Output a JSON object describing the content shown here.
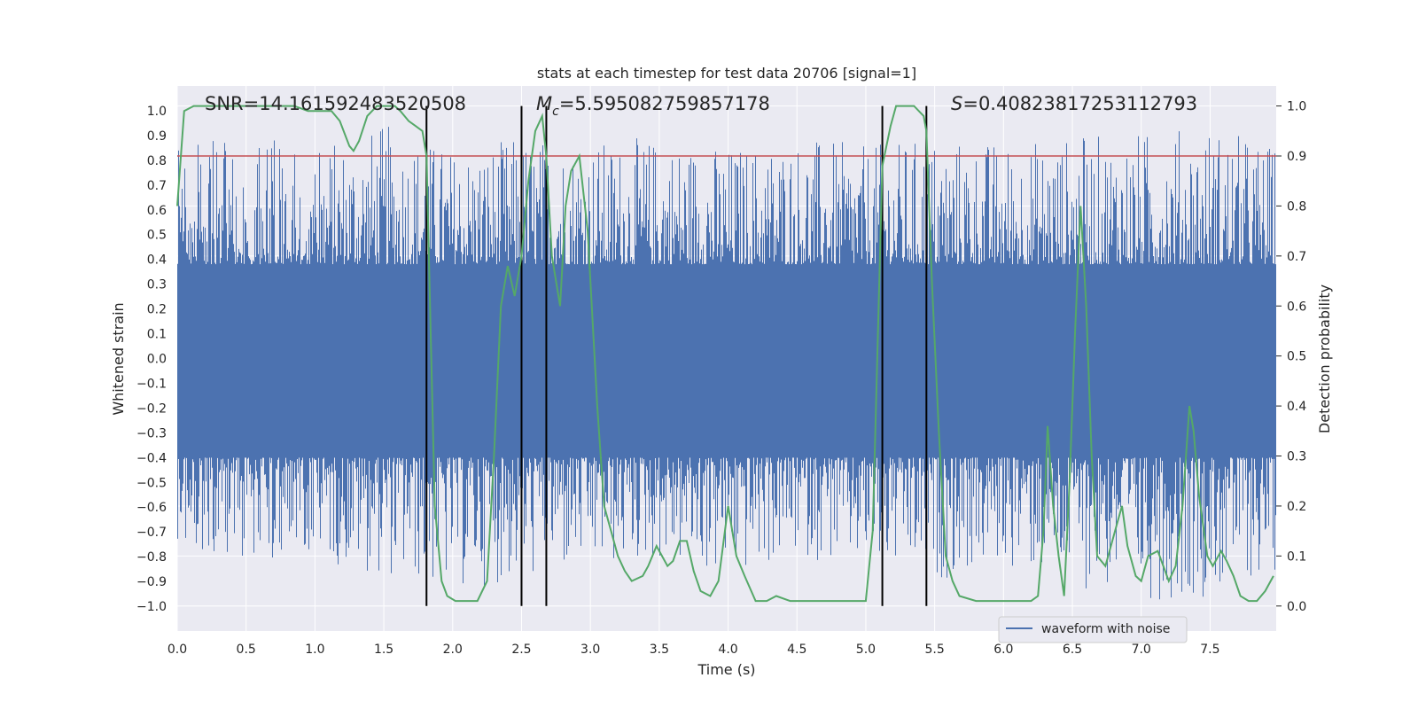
{
  "chart_data": {
    "type": "line",
    "title": "stats at each timestep for test data 20706 [signal=1]",
    "xlabel": "Time (s)",
    "ylabel": "Whitened strain",
    "y2label": "Detection probability",
    "xlim": [
      0.0,
      7.98
    ],
    "ylim": [
      -1.1,
      1.1
    ],
    "y2lim": [
      -0.05,
      1.04
    ],
    "x_ticks": [
      0.0,
      0.5,
      1.0,
      1.5,
      2.0,
      2.5,
      3.0,
      3.5,
      4.0,
      4.5,
      5.0,
      5.5,
      6.0,
      6.5,
      7.0,
      7.5
    ],
    "x_tick_labels": [
      "0.0",
      "0.5",
      "1.0",
      "1.5",
      "2.0",
      "2.5",
      "3.0",
      "3.5",
      "4.0",
      "4.5",
      "5.0",
      "5.5",
      "6.0",
      "6.5",
      "7.0",
      "7.5"
    ],
    "y_ticks": [
      1.0,
      0.9,
      0.8,
      0.7,
      0.6,
      0.5,
      0.4,
      0.3,
      0.2,
      0.1,
      0.0,
      -0.1,
      -0.2,
      -0.3,
      -0.4,
      -0.5,
      -0.6,
      -0.7,
      -0.8,
      -0.9,
      -1.0
    ],
    "y_tick_labels": [
      "1.0",
      "0.9",
      "0.8",
      "0.7",
      "0.6",
      "0.5",
      "0.4",
      "0.3",
      "0.2",
      "0.1",
      "0.0",
      "−0.1",
      "−0.2",
      "−0.3",
      "−0.4",
      "−0.5",
      "−0.6",
      "−0.7",
      "−0.8",
      "−0.9",
      "−1.0"
    ],
    "y2_ticks": [
      1.0,
      0.9,
      0.8,
      0.7,
      0.6,
      0.5,
      0.4,
      0.3,
      0.2,
      0.1,
      0.0
    ],
    "y2_tick_labels": [
      "1.0",
      "0.9",
      "0.8",
      "0.7",
      "0.6",
      "0.5",
      "0.4",
      "0.3",
      "0.2",
      "0.1",
      "0.0"
    ],
    "annotations": {
      "snr": "SNR=14.161592483520508",
      "mc_symbol": "M",
      "mc_subscript": "c",
      "mc_value": "=5.595082759857178",
      "s_symbol": "S",
      "s_value": "=0.40823817253112793"
    },
    "threshold": {
      "y2": 0.9,
      "color": "#c44e52"
    },
    "vertical_markers_x": [
      1.81,
      2.5,
      2.68,
      5.12,
      5.44
    ],
    "legend": {
      "label": "waveform with noise",
      "position": "bottom-right"
    },
    "series": [
      {
        "name": "waveform with noise",
        "axis": "left",
        "color": "#4c72b0",
        "envelope": {
          "x": [
            0.0,
            0.5,
            1.0,
            1.5,
            2.0,
            2.5,
            3.0,
            3.5,
            4.0,
            4.5,
            5.0,
            5.5,
            6.0,
            6.5,
            7.0,
            7.5,
            7.98
          ],
          "typical_upper": 0.38,
          "typical_lower": -0.4,
          "peak_upper": [
            0.86,
            0.9,
            0.86,
            0.95,
            0.85,
            0.9,
            0.88,
            0.9,
            0.86,
            0.9,
            0.86,
            0.9,
            0.88,
            0.9,
            0.92,
            0.95,
            0.86
          ],
          "peak_lower": [
            -0.78,
            -0.8,
            -0.82,
            -0.88,
            -0.94,
            -0.9,
            -0.86,
            -0.82,
            -0.9,
            -0.8,
            -0.86,
            -0.9,
            -0.84,
            -0.92,
            -0.98,
            -0.96,
            -0.86
          ]
        }
      },
      {
        "name": "detection probability",
        "axis": "right",
        "color": "#55a868",
        "x": [
          0.0,
          0.05,
          0.12,
          0.2,
          0.3,
          0.4,
          0.5,
          0.6,
          0.7,
          0.85,
          0.95,
          1.02,
          1.08,
          1.12,
          1.18,
          1.25,
          1.28,
          1.32,
          1.38,
          1.45,
          1.52,
          1.58,
          1.62,
          1.68,
          1.73,
          1.78,
          1.81,
          1.84,
          1.87,
          1.92,
          1.96,
          2.02,
          2.1,
          2.18,
          2.25,
          2.3,
          2.35,
          2.4,
          2.45,
          2.5,
          2.55,
          2.6,
          2.65,
          2.68,
          2.72,
          2.78,
          2.82,
          2.86,
          2.92,
          2.98,
          3.05,
          3.1,
          3.15,
          3.2,
          3.25,
          3.3,
          3.38,
          3.42,
          3.48,
          3.52,
          3.56,
          3.6,
          3.65,
          3.7,
          3.75,
          3.8,
          3.87,
          3.93,
          4.0,
          4.06,
          4.12,
          4.2,
          4.28,
          4.35,
          4.45,
          4.55,
          4.65,
          4.75,
          4.85,
          4.95,
          5.0,
          5.05,
          5.12,
          5.18,
          5.22,
          5.28,
          5.35,
          5.42,
          5.44,
          5.48,
          5.53,
          5.58,
          5.63,
          5.68,
          5.8,
          6.0,
          6.2,
          6.25,
          6.29,
          6.32,
          6.36,
          6.4,
          6.44,
          6.48,
          6.52,
          6.56,
          6.6,
          6.64,
          6.68,
          6.74,
          6.78,
          6.82,
          6.86,
          6.9,
          6.96,
          7.0,
          7.05,
          7.12,
          7.2,
          7.25,
          7.3,
          7.35,
          7.38,
          7.42,
          7.48,
          7.52,
          7.58,
          7.62,
          7.67,
          7.72,
          7.78,
          7.84,
          7.9,
          7.96
        ],
        "y": [
          0.8,
          0.99,
          1.0,
          1.0,
          1.0,
          1.0,
          1.0,
          1.0,
          1.0,
          1.0,
          0.99,
          0.99,
          0.99,
          0.99,
          0.97,
          0.92,
          0.91,
          0.93,
          0.98,
          1.0,
          1.0,
          1.0,
          0.99,
          0.97,
          0.96,
          0.95,
          0.9,
          0.55,
          0.2,
          0.05,
          0.02,
          0.01,
          0.01,
          0.01,
          0.05,
          0.3,
          0.6,
          0.68,
          0.62,
          0.7,
          0.85,
          0.95,
          0.98,
          0.9,
          0.7,
          0.6,
          0.8,
          0.87,
          0.9,
          0.75,
          0.4,
          0.2,
          0.15,
          0.1,
          0.07,
          0.05,
          0.06,
          0.08,
          0.12,
          0.1,
          0.08,
          0.09,
          0.13,
          0.13,
          0.07,
          0.03,
          0.02,
          0.05,
          0.2,
          0.1,
          0.06,
          0.01,
          0.01,
          0.02,
          0.01,
          0.01,
          0.01,
          0.01,
          0.01,
          0.01,
          0.01,
          0.15,
          0.88,
          0.96,
          1.0,
          1.0,
          1.0,
          0.98,
          0.95,
          0.65,
          0.35,
          0.1,
          0.05,
          0.02,
          0.01,
          0.01,
          0.01,
          0.02,
          0.15,
          0.36,
          0.2,
          0.1,
          0.02,
          0.25,
          0.55,
          0.8,
          0.6,
          0.3,
          0.1,
          0.08,
          0.12,
          0.16,
          0.2,
          0.12,
          0.06,
          0.05,
          0.1,
          0.11,
          0.05,
          0.08,
          0.2,
          0.4,
          0.35,
          0.22,
          0.1,
          0.08,
          0.11,
          0.09,
          0.06,
          0.02,
          0.01,
          0.01,
          0.03,
          0.06
        ]
      }
    ]
  }
}
